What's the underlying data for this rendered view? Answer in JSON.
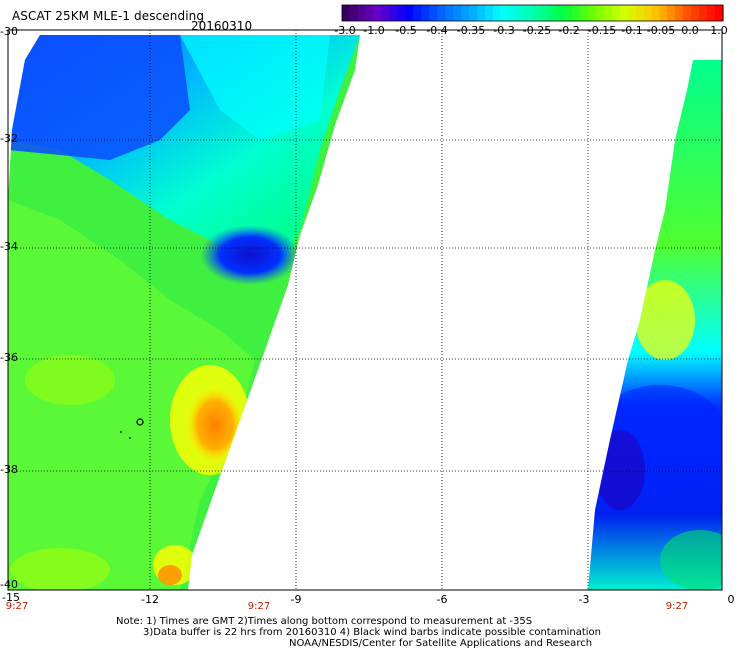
{
  "header": {
    "title": "ASCAT 25KM MLE-1 descending",
    "date": "20160310"
  },
  "colorbar": {
    "ticks": [
      "-3.0",
      "-1.0",
      "-0.5",
      "-0.4",
      "-0.35",
      "-0.3",
      "-0.25",
      "-0.2",
      "-0.15",
      "-0.1",
      "-0.05",
      "0.0",
      "1.0"
    ],
    "colors": [
      "#3a0060",
      "#6a00c8",
      "#0000ff",
      "#0060ff",
      "#00a8ff",
      "#00ffff",
      "#00ffb0",
      "#00ff40",
      "#70ff00",
      "#d8ff00",
      "#ffc000",
      "#ff5000",
      "#ff0000"
    ]
  },
  "map": {
    "lat_labels": [
      "-30",
      "-32",
      "-34",
      "-36",
      "-38",
      "-40"
    ],
    "lon_labels": [
      "-15",
      "-12",
      "-9",
      "-6",
      "-3",
      "0"
    ],
    "time_labels": [
      "9:27",
      "9:27",
      "9:27"
    ]
  },
  "notes": {
    "line1": "Note: 1) Times are GMT 2)Times along bottom correspond to measurement at -35S",
    "line2": "3)Data buffer is 22 hrs from 20160310 4) Black wind barbs indicate possible contamination",
    "line3": "NOAA/NESDIS/Center for Satellite Applications and Research"
  }
}
